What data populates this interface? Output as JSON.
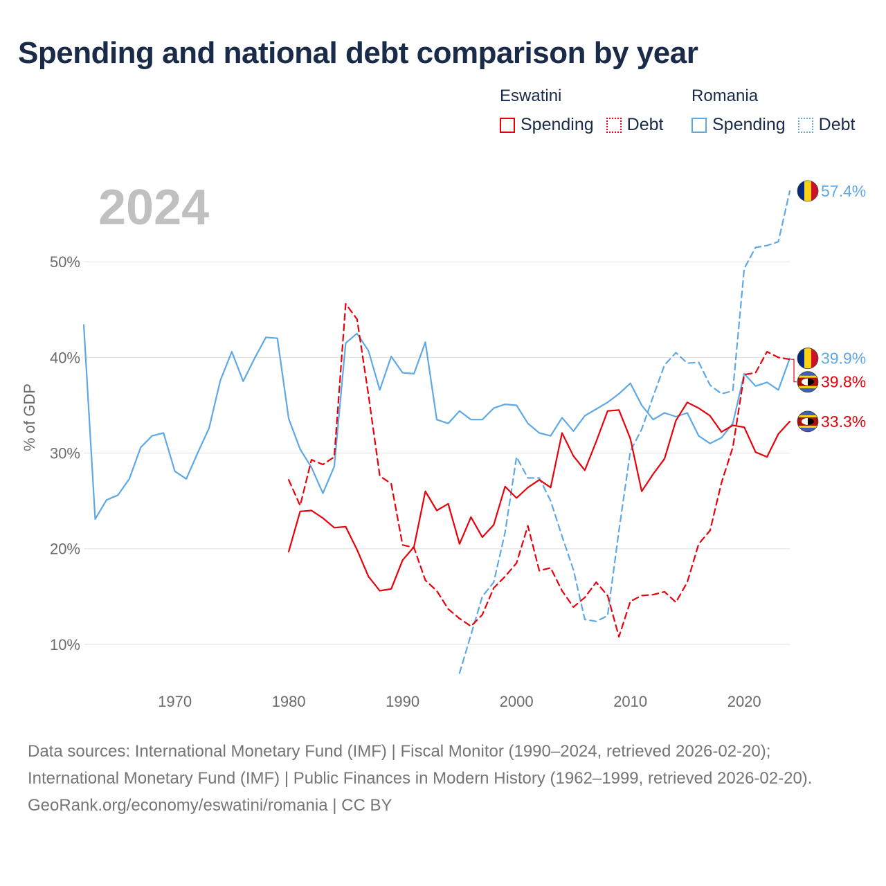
{
  "title": "Spending and national debt comparison by year",
  "year_label": "2024",
  "legend": {
    "eswatini": {
      "name": "Eswatini",
      "spending": "Spending",
      "debt": "Debt"
    },
    "romania": {
      "name": "Romania",
      "spending": "Spending",
      "debt": "Debt"
    }
  },
  "colors": {
    "eswatini": "#e8000b",
    "romania": "#5ea8e6"
  },
  "footer": {
    "sources": "Data sources: International Monetary Fund (IMF) | Fiscal Monitor (1990–2024, retrieved 2026-02-20); International Monetary Fund (IMF) | Public Finances in Modern History (1962–1999, retrieved 2026-02-20).",
    "credit": "GeoRank.org/economy/eswatini/romania | CC BY"
  },
  "chart_data": {
    "type": "line",
    "ylabel": "% of GDP",
    "xlabel": "",
    "xlim": [
      1962,
      2024
    ],
    "ylim": [
      5,
      60
    ],
    "x_ticks": [
      1970,
      1980,
      1990,
      2000,
      2010,
      2020
    ],
    "y_ticks": [
      10,
      20,
      30,
      40,
      50
    ],
    "y_tick_labels": [
      "10%",
      "20%",
      "30%",
      "40%",
      "50%"
    ],
    "grid": true,
    "series": [
      {
        "name": "Romania Spending",
        "country": "Romania",
        "measure": "Spending",
        "style": "solid",
        "color": "#5ea8e6",
        "end_label": "39.9%",
        "x": [
          1962,
          1963,
          1964,
          1965,
          1966,
          1967,
          1968,
          1969,
          1970,
          1971,
          1972,
          1973,
          1974,
          1975,
          1976,
          1977,
          1978,
          1979,
          1980,
          1981,
          1982,
          1983,
          1984,
          1985,
          1986,
          1987,
          1988,
          1989,
          1990,
          1991,
          1992,
          1993,
          1994,
          1995,
          1996,
          1997,
          1998,
          1999,
          2000,
          2001,
          2002,
          2003,
          2004,
          2005,
          2006,
          2007,
          2008,
          2009,
          2010,
          2011,
          2012,
          2013,
          2014,
          2015,
          2016,
          2017,
          2018,
          2019,
          2020,
          2021,
          2022,
          2023,
          2024
        ],
        "values": [
          43.4,
          23.1,
          25.1,
          25.6,
          27.3,
          30.6,
          31.8,
          32.1,
          28.1,
          27.3,
          30.0,
          32.6,
          37.6,
          40.6,
          37.5,
          39.9,
          42.1,
          42.0,
          33.6,
          30.4,
          28.5,
          25.8,
          28.6,
          41.5,
          42.5,
          40.7,
          36.6,
          40.1,
          38.4,
          38.3,
          41.6,
          33.5,
          33.1,
          34.4,
          33.5,
          33.5,
          34.7,
          35.1,
          35.0,
          33.1,
          32.1,
          31.8,
          33.7,
          32.3,
          33.9,
          34.6,
          35.3,
          36.2,
          37.3,
          35.0,
          33.5,
          34.2,
          33.8,
          34.2,
          31.8,
          31.0,
          31.6,
          33.1,
          38.3,
          37.0,
          37.4,
          36.6,
          39.9
        ]
      },
      {
        "name": "Romania Debt",
        "country": "Romania",
        "measure": "Debt",
        "style": "dashed",
        "color": "#5ea8e6",
        "end_label": "57.4%",
        "x": [
          1995,
          1996,
          1997,
          1998,
          1999,
          2000,
          2001,
          2002,
          2003,
          2004,
          2005,
          2006,
          2007,
          2008,
          2009,
          2010,
          2011,
          2012,
          2013,
          2014,
          2015,
          2016,
          2017,
          2018,
          2019,
          2020,
          2021,
          2022,
          2023,
          2024
        ],
        "values": [
          7.0,
          11.0,
          15.0,
          16.5,
          21.7,
          29.6,
          27.4,
          27.4,
          25.0,
          21.3,
          17.8,
          12.6,
          12.4,
          13.0,
          21.9,
          30.2,
          32.5,
          35.9,
          39.2,
          40.5,
          39.4,
          39.5,
          37.1,
          36.2,
          36.5,
          49.3,
          51.5,
          51.7,
          52.1,
          57.4
        ]
      },
      {
        "name": "Eswatini Spending",
        "country": "Eswatini",
        "measure": "Spending",
        "style": "solid",
        "color": "#e8000b",
        "end_label": "33.3%",
        "x": [
          1980,
          1981,
          1982,
          1983,
          1984,
          1985,
          1986,
          1987,
          1988,
          1989,
          1990,
          1991,
          1992,
          1993,
          1994,
          1995,
          1996,
          1997,
          1998,
          1999,
          2000,
          2001,
          2002,
          2003,
          2004,
          2005,
          2006,
          2007,
          2008,
          2009,
          2010,
          2011,
          2012,
          2013,
          2014,
          2015,
          2016,
          2017,
          2018,
          2019,
          2020,
          2021,
          2022,
          2023,
          2024
        ],
        "values": [
          19.7,
          23.9,
          24.0,
          23.2,
          22.2,
          22.3,
          19.9,
          17.1,
          15.6,
          15.8,
          18.8,
          20.2,
          26.0,
          24.0,
          24.7,
          20.5,
          23.3,
          21.2,
          22.5,
          26.5,
          25.3,
          26.4,
          27.2,
          26.4,
          32.1,
          29.7,
          28.2,
          31.2,
          34.4,
          34.5,
          31.5,
          26.0,
          27.8,
          29.4,
          33.4,
          35.3,
          34.7,
          33.9,
          32.2,
          32.9,
          32.7,
          30.1,
          29.6,
          32.0,
          33.3
        ]
      },
      {
        "name": "Eswatini Debt",
        "country": "Eswatini",
        "measure": "Debt",
        "style": "dashed",
        "color": "#e8000b",
        "end_label": "39.8%",
        "x": [
          1980,
          1981,
          1982,
          1983,
          1984,
          1985,
          1986,
          1987,
          1988,
          1989,
          1990,
          1991,
          1992,
          1993,
          1994,
          1995,
          1996,
          1997,
          1998,
          1999,
          2000,
          2001,
          2002,
          2003,
          2004,
          2005,
          2006,
          2007,
          2008,
          2009,
          2010,
          2011,
          2012,
          2013,
          2014,
          2015,
          2016,
          2017,
          2018,
          2019,
          2020,
          2021,
          2022,
          2023,
          2024
        ],
        "values": [
          27.2,
          24.5,
          29.3,
          28.8,
          29.6,
          45.6,
          44.0,
          36.1,
          27.6,
          26.8,
          20.4,
          20.1,
          16.7,
          15.6,
          13.7,
          12.7,
          11.9,
          13.1,
          15.9,
          17.1,
          18.5,
          22.4,
          17.7,
          18.0,
          15.6,
          13.9,
          14.9,
          16.5,
          15.1,
          10.8,
          14.5,
          15.1,
          15.2,
          15.5,
          14.4,
          16.5,
          20.5,
          21.9,
          26.9,
          30.6,
          38.2,
          38.4,
          40.6,
          40.0,
          39.8
        ]
      }
    ]
  }
}
